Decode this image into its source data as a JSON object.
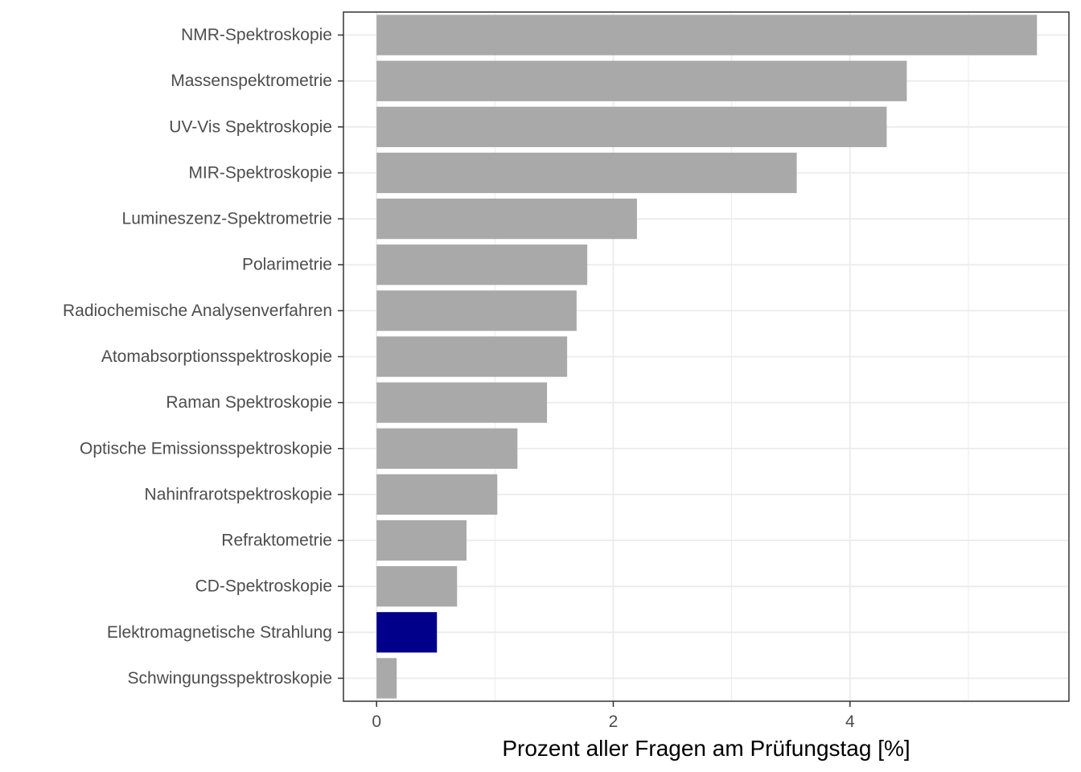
{
  "chart_data": {
    "type": "bar",
    "orientation": "horizontal",
    "title": "",
    "xlabel": "Prozent aller Fragen am Prüfungstag [%]",
    "ylabel": "",
    "xlim": [
      -0.28,
      5.85
    ],
    "xticks": [
      0,
      2,
      4
    ],
    "xticks_minor": [
      1,
      3,
      5
    ],
    "grid": true,
    "legend": "none",
    "categories": [
      "NMR-Spektroskopie",
      "Massenspektrometrie",
      "UV-Vis Spektroskopie",
      "MIR-Spektroskopie",
      "Lumineszenz-Spektrometrie",
      "Polarimetrie",
      "Radiochemische Analysenverfahren",
      "Atomabsorptionsspektroskopie",
      "Raman Spektroskopie",
      "Optische Emissionsspektroskopie",
      "Nahinfrarotspektroskopie",
      "Refraktometrie",
      "CD-Spektroskopie",
      "Elektromagnetische Strahlung",
      "Schwingungsspektroskopie"
    ],
    "values": [
      5.58,
      4.48,
      4.31,
      3.55,
      2.2,
      1.78,
      1.69,
      1.61,
      1.44,
      1.19,
      1.02,
      0.76,
      0.68,
      0.51,
      0.17
    ],
    "highlight": "Elektromagnetische Strahlung",
    "colors": {
      "bar": "#a9a9a9",
      "highlight": "#00008b",
      "grid": "#ebebeb",
      "panel_border": "#333333"
    }
  }
}
